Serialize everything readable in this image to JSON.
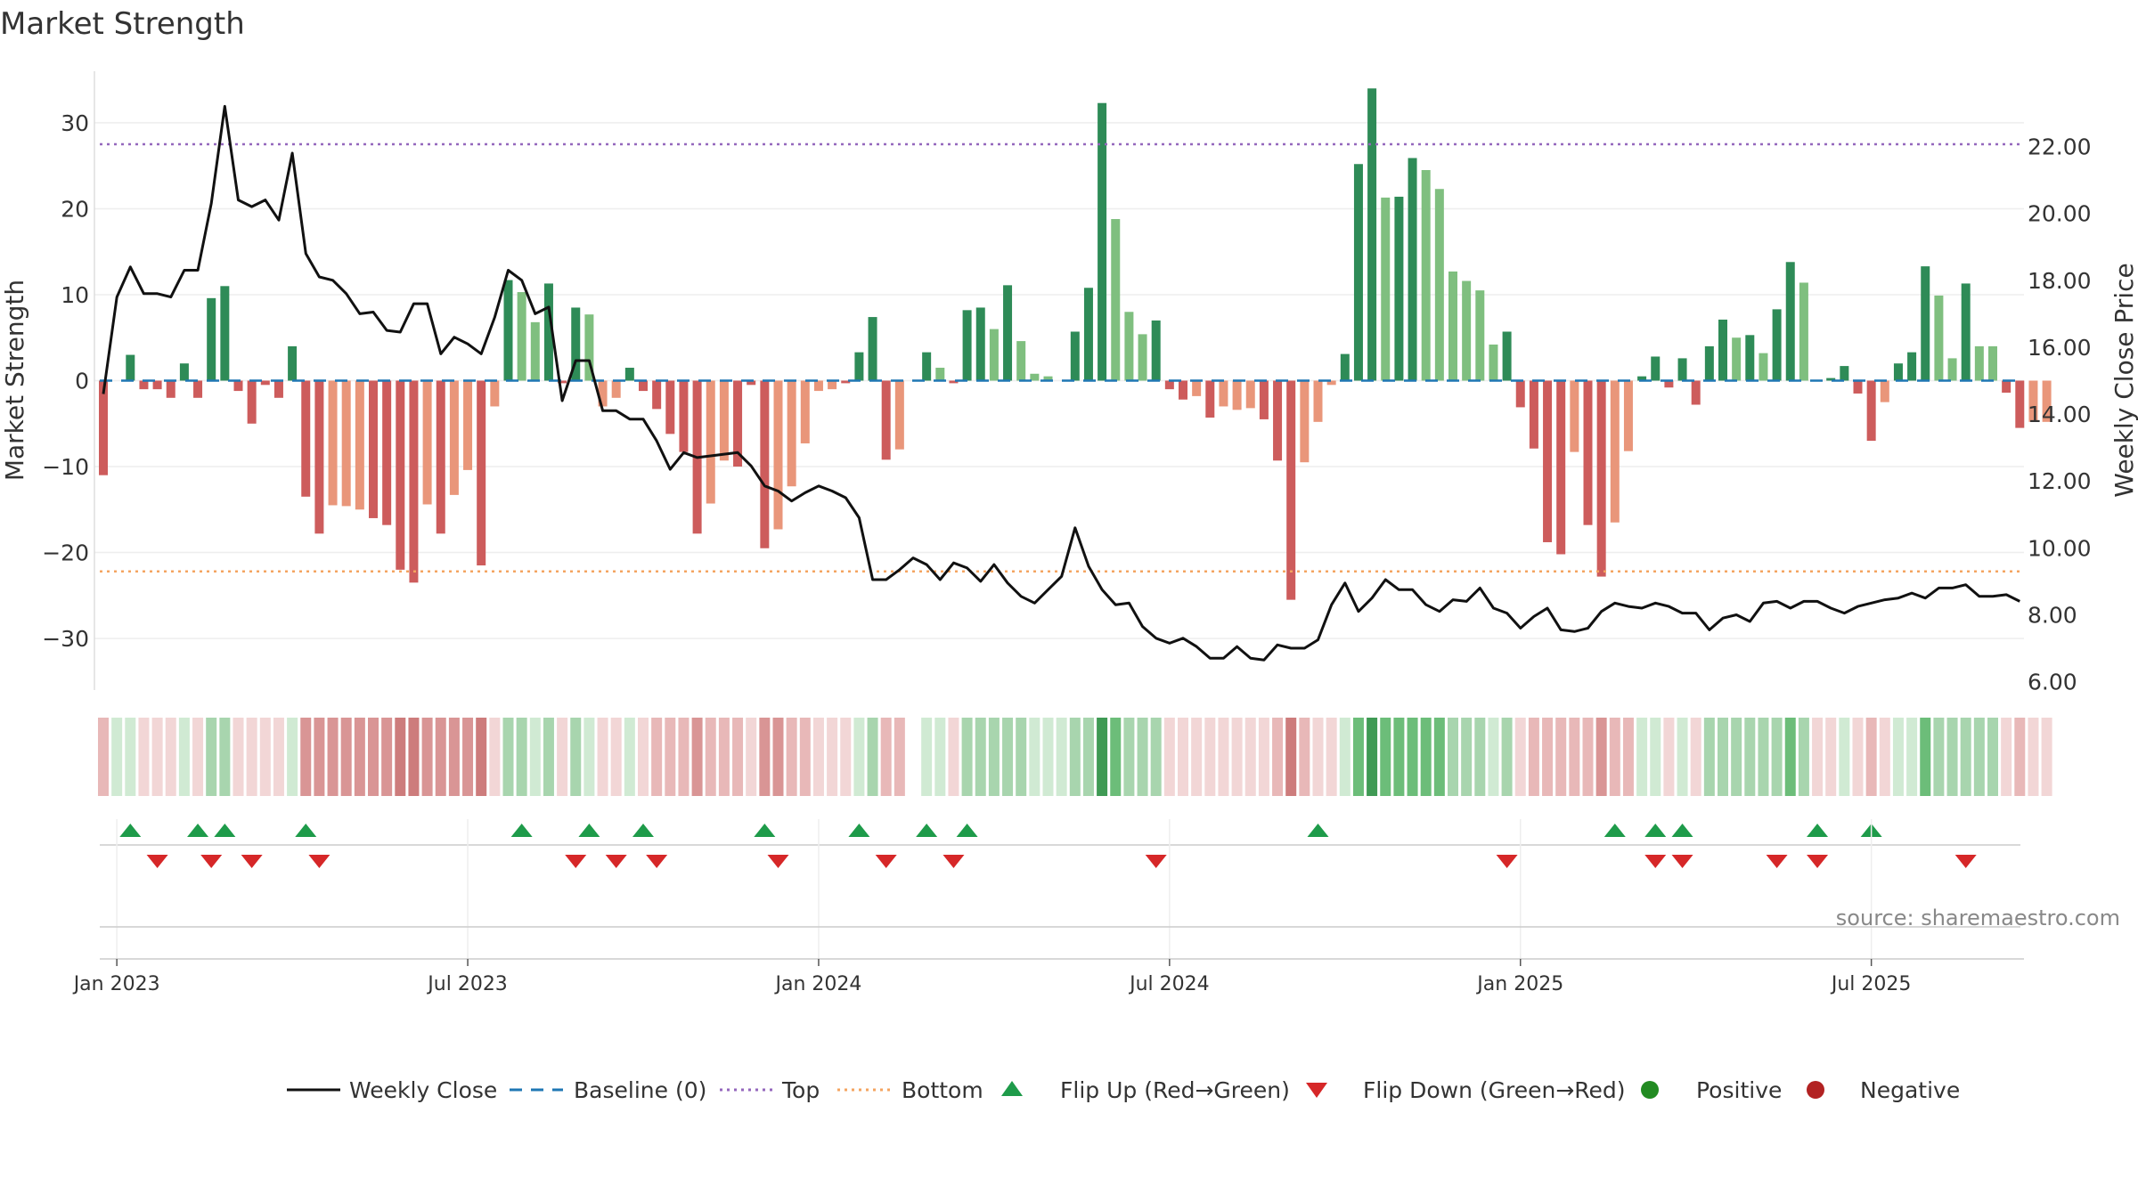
{
  "title": "Market Strength",
  "watermark": "source: sharemaestro.com",
  "colors": {
    "strong_green": "#2e8b57",
    "light_green": "#7fbf7f",
    "strong_red": "#cd5c5c",
    "light_red": "#e9967a",
    "close_line": "#111111",
    "baseline": "#1f77b4",
    "top": "#9467bd",
    "bottom": "#f4a460",
    "flip_up": "#1e9b4a",
    "flip_down": "#d62728",
    "positive": "#228b22",
    "negative": "#b22222"
  },
  "chart_data": {
    "type": "bar",
    "title": "Market Strength",
    "ylabel_left": "Market Strength",
    "ylabel_right": "Weekly Close Price",
    "ylim_left": [
      -36,
      36
    ],
    "ylim_right": [
      5.75,
      24.25
    ],
    "left_ticks": [
      30,
      20,
      10,
      0,
      -10,
      -20,
      -30
    ],
    "left_tick_labels": [
      "30",
      "20",
      "10",
      "0",
      "−10",
      "−20",
      "−30"
    ],
    "right_ticks": [
      22,
      20,
      18,
      16,
      14,
      12,
      10,
      8,
      6
    ],
    "right_tick_labels": [
      "22.00",
      "20.00",
      "18.00",
      "16.00",
      "14.00",
      "12.00",
      "10.00",
      "8.00",
      "6.00"
    ],
    "x_tick_labels": [
      "Jan 2023",
      "Jul 2023",
      "Jan 2024",
      "Jul 2024",
      "Jan 2025",
      "Jul 2025"
    ],
    "x_tick_weeks": [
      1,
      27,
      53,
      79,
      105,
      131
    ],
    "top_level": 27.5,
    "bottom_level": -22.2,
    "baseline_level": 0,
    "grid": true,
    "legend_position": "bottom-center",
    "weeks": 143,
    "strength": [
      -11,
      0,
      3,
      -1,
      -1,
      -2,
      2,
      -2,
      9.6,
      11,
      -1.2,
      -5,
      -0.5,
      -2,
      4,
      -13.5,
      -17.8,
      -14.5,
      -14.6,
      -15,
      -16,
      -16.8,
      -22,
      -23.5,
      -14.4,
      -17.8,
      -13.3,
      -10.4,
      -21.5,
      -3,
      11.7,
      10.3,
      6.8,
      11.3,
      -0.3,
      8.5,
      7.7,
      -3,
      -2,
      1.5,
      -1.2,
      -3.3,
      -6.2,
      -8.3,
      -17.8,
      -14.3,
      -9.3,
      -10,
      -0.5,
      -19.5,
      -17.3,
      -12.3,
      -7.3,
      -1.2,
      -1,
      -0.3,
      3.3,
      7.4,
      -9.2,
      -8,
      0,
      3.3,
      1.5,
      -0.3,
      8.2,
      8.5,
      6,
      11.1,
      4.6,
      0.8,
      0.5,
      0,
      5.7,
      10.8,
      32.3,
      18.8,
      8,
      5.4,
      7,
      -1,
      -2.2,
      -1.8,
      -4.3,
      -3,
      -3.4,
      -3.2,
      -4.5,
      -9.3,
      -25.5,
      -9.5,
      -4.8,
      -0.5,
      3.1,
      25.2,
      34,
      21.3,
      21.4,
      25.9,
      24.5,
      22.3,
      12.7,
      11.6,
      10.5,
      4.2,
      5.7,
      -3.1,
      -7.9,
      -18.8,
      -20.2,
      -8.3,
      -16.8,
      -22.8,
      -16.5,
      -8.2,
      0.5,
      2.8,
      -0.8,
      2.6,
      -2.8,
      4,
      7.1,
      5,
      5.3,
      3.2,
      8.3,
      13.8,
      11.4,
      0,
      0.3,
      1.7,
      -1.5,
      -7,
      -2.5,
      2,
      3.3,
      13.3,
      9.9,
      2.6,
      11.3,
      4,
      4,
      -1.4,
      -5.5,
      -4.8,
      -4.8
    ],
    "bar_shade": [
      "dr",
      "",
      "g",
      "r",
      "r",
      "r",
      "g",
      "r",
      "g",
      "g",
      "r",
      "r",
      "r",
      "r",
      "g",
      "dr",
      "dr",
      "lr",
      "lr",
      "lr",
      "dr",
      "dr",
      "dr",
      "dr",
      "lr",
      "dr",
      "lr",
      "lr",
      "dr",
      "lr",
      "g",
      "lg",
      "lg",
      "g",
      "r",
      "g",
      "lg",
      "lr",
      "lr",
      "g",
      "r",
      "dr",
      "dr",
      "dr",
      "dr",
      "lr",
      "lr",
      "dr",
      "r",
      "dr",
      "lr",
      "lr",
      "lr",
      "lr",
      "lr",
      "r",
      "g",
      "g",
      "dr",
      "lr",
      "",
      "g",
      "lg",
      "r",
      "g",
      "g",
      "lg",
      "g",
      "lg",
      "lg",
      "lg",
      "",
      "g",
      "g",
      "g",
      "lg",
      "lg",
      "lg",
      "g",
      "r",
      "dr",
      "lr",
      "dr",
      "lr",
      "lr",
      "lr",
      "dr",
      "dr",
      "dr",
      "lr",
      "lr",
      "lr",
      "g",
      "g",
      "g",
      "lg",
      "g",
      "g",
      "lg",
      "lg",
      "lg",
      "lg",
      "lg",
      "lg",
      "g",
      "dr",
      "dr",
      "dr",
      "dr",
      "lr",
      "dr",
      "dr",
      "lr",
      "lr",
      "g",
      "g",
      "r",
      "g",
      "dr",
      "g",
      "g",
      "lg",
      "g",
      "lg",
      "g",
      "g",
      "lg",
      "",
      "g",
      "g",
      "dr",
      "dr",
      "lr",
      "g",
      "g",
      "g",
      "lg",
      "lg",
      "g",
      "lg",
      "lg",
      "r",
      "dr",
      "lr",
      "lr"
    ],
    "close": [
      14.6,
      17.5,
      18.4,
      17.6,
      17.6,
      17.5,
      18.3,
      18.3,
      20.3,
      23.2,
      20.4,
      20.2,
      20.4,
      19.8,
      21.8,
      18.8,
      18.1,
      18,
      17.6,
      17,
      17.05,
      16.5,
      16.45,
      17.3,
      17.3,
      15.8,
      16.3,
      16.1,
      15.8,
      16.9,
      18.3,
      18,
      17,
      17.2,
      14.4,
      15.6,
      15.6,
      14.1,
      14.1,
      13.85,
      13.85,
      13.2,
      12.35,
      12.85,
      12.7,
      12.75,
      12.8,
      12.85,
      12.45,
      11.85,
      11.7,
      11.4,
      11.65,
      11.85,
      11.7,
      11.5,
      10.9,
      9.05,
      9.05,
      9.35,
      9.7,
      9.5,
      9.05,
      9.55,
      9.4,
      9,
      9.5,
      8.95,
      8.55,
      8.35,
      8.75,
      9.15,
      10.6,
      9.45,
      8.75,
      8.3,
      8.35,
      7.65,
      7.3,
      7.15,
      7.3,
      7.05,
      6.7,
      6.7,
      7.05,
      6.7,
      6.65,
      7.1,
      7,
      7,
      7.25,
      8.3,
      8.95,
      8.1,
      8.5,
      9.05,
      8.75,
      8.75,
      8.3,
      8.1,
      8.45,
      8.4,
      8.8,
      8.2,
      8.05,
      7.6,
      7.95,
      8.2,
      7.55,
      7.5,
      7.6,
      8.1,
      8.35,
      8.25,
      8.2,
      8.35,
      8.25,
      8.05,
      8.05,
      7.55,
      7.9,
      8,
      7.8,
      8.35,
      8.4,
      8.2,
      8.4,
      8.4,
      8.2,
      8.05,
      8.25,
      8.35,
      8.45,
      8.5,
      8.65,
      8.5,
      8.8,
      8.8,
      8.9,
      8.55,
      8.55,
      8.6,
      8.4
    ],
    "strip_shade": [
      "r2",
      "g1",
      "g1",
      "r1",
      "r1",
      "r1",
      "g1",
      "r1",
      "g2",
      "g2",
      "r1",
      "r1",
      "r1",
      "r1",
      "g1",
      "r3",
      "r3",
      "r3",
      "r3",
      "r3",
      "r3",
      "r3",
      "r4",
      "r4",
      "r3",
      "r3",
      "r3",
      "r3",
      "r4",
      "r1",
      "g2",
      "g2",
      "g1",
      "g2",
      "r1",
      "g2",
      "g1",
      "r1",
      "r1",
      "g1",
      "r1",
      "r2",
      "r2",
      "r2",
      "r3",
      "r2",
      "r2",
      "r2",
      "r1",
      "r3",
      "r3",
      "r2",
      "r2",
      "r1",
      "r1",
      "r1",
      "g1",
      "g2",
      "r2",
      "r2",
      "",
      "g1",
      "g1",
      "r1",
      "g2",
      "g2",
      "g2",
      "g2",
      "g2",
      "g1",
      "g1",
      "g1",
      "g2",
      "g2",
      "g4",
      "g3",
      "g2",
      "g2",
      "g2",
      "r1",
      "r1",
      "r1",
      "r1",
      "r1",
      "r1",
      "r1",
      "r1",
      "r2",
      "r4",
      "r2",
      "r1",
      "r1",
      "g1",
      "g3",
      "g4",
      "g3",
      "g3",
      "g3",
      "g3",
      "g3",
      "g2",
      "g2",
      "g2",
      "g1",
      "g2",
      "r1",
      "r2",
      "r2",
      "r2",
      "r2",
      "r2",
      "r3",
      "r2",
      "r2",
      "g1",
      "g1",
      "r1",
      "g1",
      "r1",
      "g2",
      "g2",
      "g2",
      "g2",
      "g2",
      "g2",
      "g3",
      "g2",
      "r1",
      "r1",
      "g1",
      "r1",
      "r2",
      "r1",
      "g1",
      "g1",
      "g3",
      "g2",
      "g2",
      "g2",
      "g2",
      "g2",
      "r1",
      "r2",
      "r1",
      "r1"
    ],
    "flip_up_weeks": [
      2,
      7,
      9,
      15,
      31,
      36,
      40,
      49,
      56,
      61,
      64,
      90,
      112,
      115,
      117,
      127,
      131
    ],
    "flip_down_weeks": [
      4,
      8,
      11,
      16,
      35,
      38,
      41,
      50,
      58,
      63,
      78,
      104,
      115,
      117,
      124,
      127,
      138
    ],
    "legend": [
      {
        "label": "Weekly Close",
        "kind": "line-solid"
      },
      {
        "label": "Baseline (0)",
        "kind": "line-dash"
      },
      {
        "label": "Top",
        "kind": "line-dot-top"
      },
      {
        "label": "Bottom",
        "kind": "line-dot-bottom"
      },
      {
        "label": "Flip Up (Red→Green)",
        "kind": "tri-up"
      },
      {
        "label": "Flip Down (Green→Red)",
        "kind": "tri-down"
      },
      {
        "label": "Positive",
        "kind": "dot-pos"
      },
      {
        "label": "Negative",
        "kind": "dot-neg"
      }
    ]
  }
}
